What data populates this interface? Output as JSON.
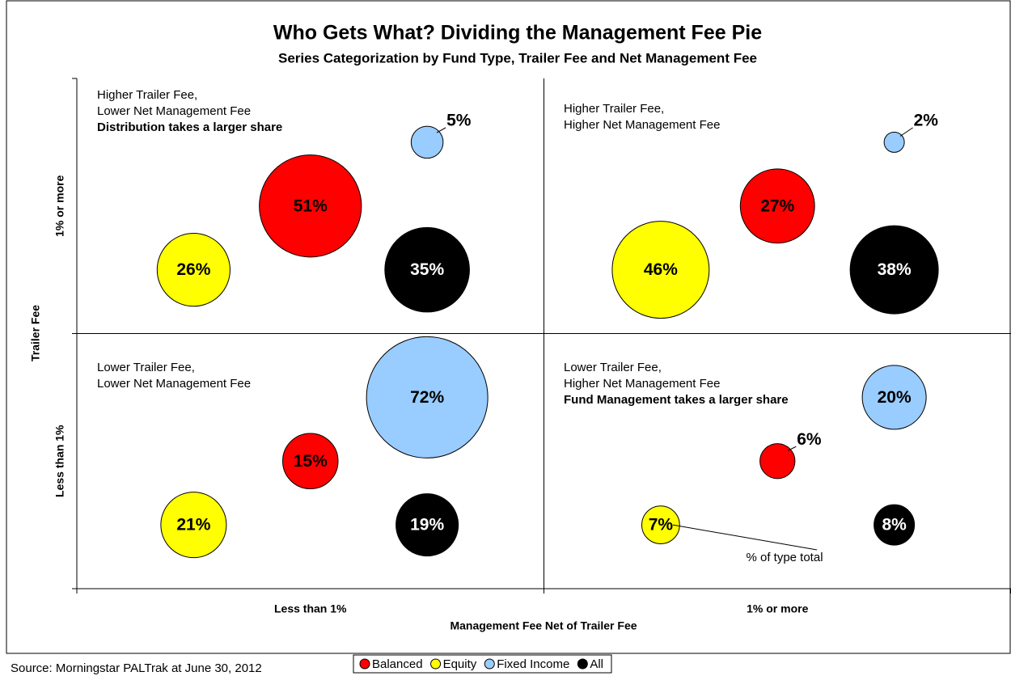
{
  "chart_data": {
    "type": "bubble",
    "title": "Who Gets What? Dividing the Management Fee Pie",
    "subtitle": "Series Categorization by Fund Type, Trailer Fee and Net Management Fee",
    "xlabel": "Management Fee Net of Trailer Fee",
    "ylabel": "Trailer Fee",
    "x_categories": [
      "Less than 1%",
      "1% or more"
    ],
    "y_categories": [
      "Less than 1%",
      "1% or more"
    ],
    "xlim": [
      0,
      2
    ],
    "ylim": [
      0,
      2
    ],
    "xticks": [
      0,
      1,
      2
    ],
    "yticks": [
      0,
      1,
      2
    ],
    "grid": true,
    "series": [
      {
        "name": "Balanced",
        "color": "#ff0000",
        "label_color": "#000000",
        "x": [
          0.5,
          1.5,
          0.5,
          1.5
        ],
        "values": [
          1.5,
          1.5,
          0.5,
          0.5
        ],
        "sizes": [
          51,
          27,
          15,
          6
        ],
        "value_labels": [
          "51%",
          "27%",
          "15%",
          "6%"
        ]
      },
      {
        "name": "Equity",
        "color": "#ffff00",
        "label_color": "#000000",
        "x": [
          0.25,
          1.25,
          0.25,
          1.25
        ],
        "values": [
          1.25,
          1.25,
          0.25,
          0.25
        ],
        "sizes": [
          26,
          46,
          21,
          7
        ],
        "value_labels": [
          "26%",
          "46%",
          "21%",
          "7%"
        ]
      },
      {
        "name": "Fixed Income",
        "color": "#99ccff",
        "label_color": "#000000",
        "x": [
          0.75,
          1.75,
          0.75,
          1.75
        ],
        "values": [
          1.75,
          1.75,
          0.75,
          0.75
        ],
        "sizes": [
          5,
          2,
          72,
          20
        ],
        "value_labels": [
          "5%",
          "2%",
          "72%",
          "20%"
        ]
      },
      {
        "name": "All",
        "color": "#000000",
        "label_color": "#ffffff",
        "x": [
          0.75,
          1.75,
          0.75,
          1.75
        ],
        "values": [
          1.25,
          1.25,
          0.25,
          0.25
        ],
        "sizes": [
          35,
          38,
          19,
          8
        ],
        "value_labels": [
          "35%",
          "38%",
          "19%",
          "8%"
        ]
      }
    ],
    "quadrant_notes": [
      {
        "lines": [
          "Higher Trailer Fee,",
          "Lower Net Management Fee"
        ],
        "emphasis": "Distribution takes a larger share"
      },
      {
        "lines": [
          "Higher Trailer Fee,",
          "Higher Net Management Fee"
        ]
      },
      {
        "lines": [
          "Lower Trailer Fee,",
          "Lower Net Management Fee"
        ]
      },
      {
        "lines": [
          "Lower Trailer Fee,",
          "Higher Net Management Fee"
        ],
        "emphasis": "Fund Management takes a larger share"
      }
    ],
    "callout": "% of type total",
    "source": "Source: Morningstar PALTrak at June 30, 2012"
  }
}
